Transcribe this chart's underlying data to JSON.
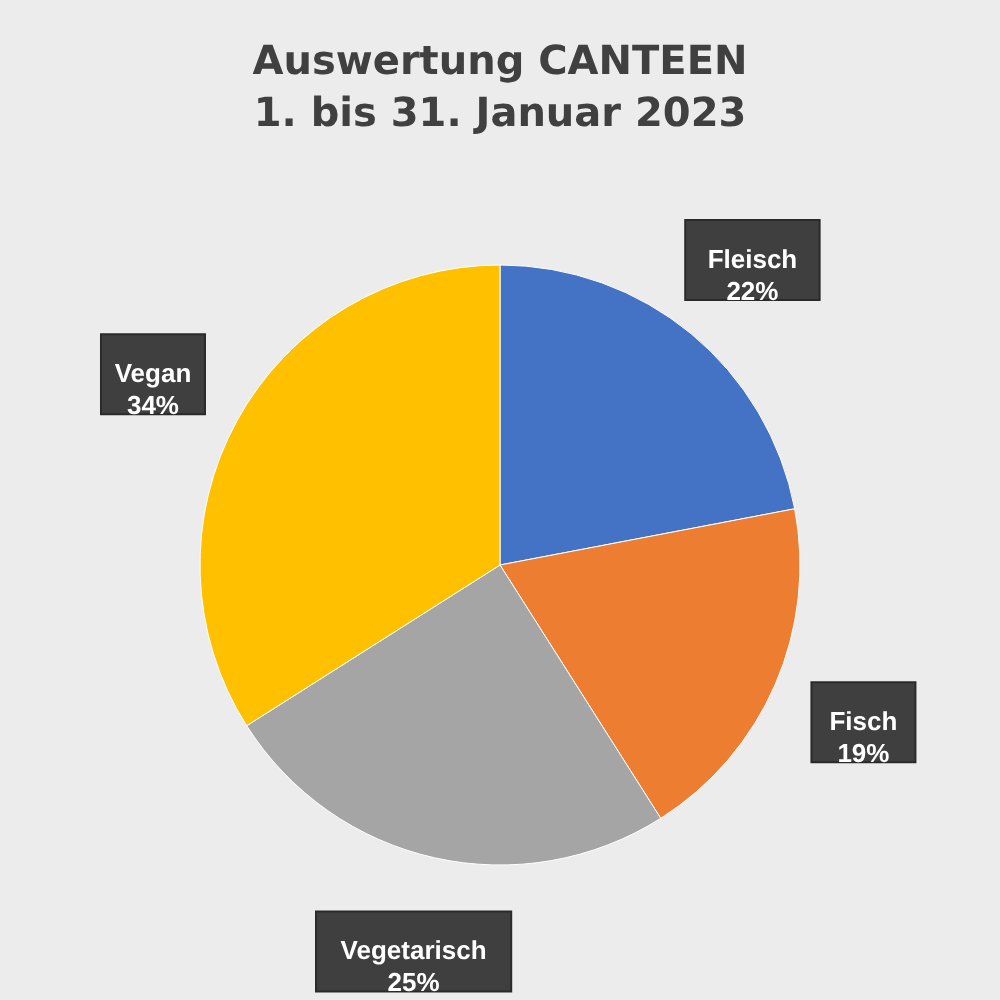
{
  "chart_data": {
    "type": "pie",
    "title": "Auswertung CANTEEN\n1. bis 31. Januar 2023",
    "categories": [
      "Fleisch",
      "Fisch",
      "Vegetarisch",
      "Vegan"
    ],
    "values": [
      22,
      19,
      25,
      34
    ],
    "colors": [
      "#4472c4",
      "#ed7d31",
      "#a5a5a5",
      "#ffc000"
    ],
    "value_labels": [
      "22%",
      "19%",
      "25%",
      "34%"
    ]
  }
}
